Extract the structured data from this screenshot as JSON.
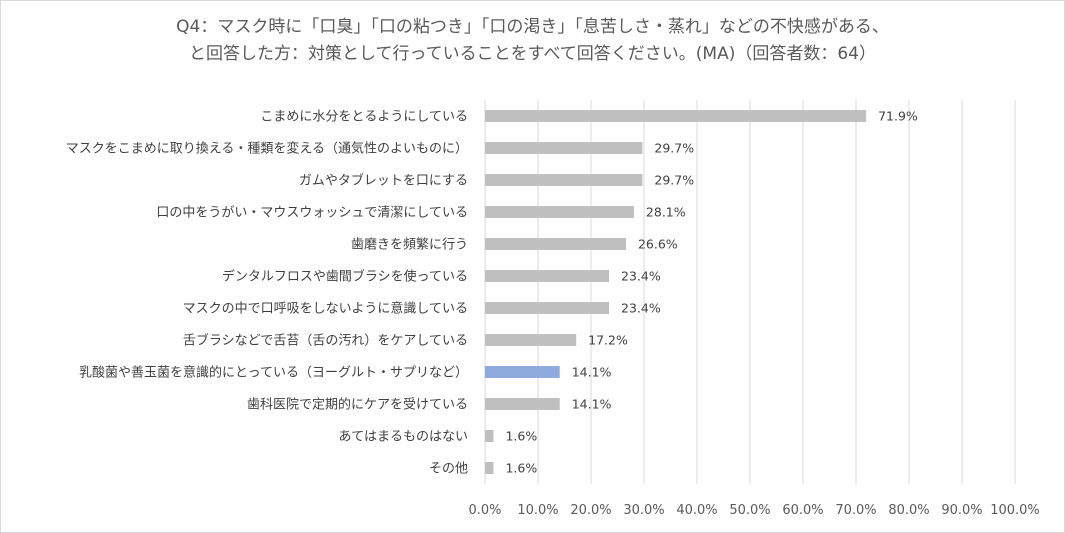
{
  "title_line1": "Q4：マスク時に「口臭」「口の粘つき」「口の渇き」「息苦しさ・蒸れ」などの不快感がある、",
  "title_line2": "と回答した方：対策として行っていることをすべて回答ください。(MA)（回答者数：64）",
  "chart_data": {
    "type": "bar",
    "orientation": "horizontal",
    "title": "Q4：マスク時に「口臭」「口の粘つき」「口の渇き」「息苦しさ・蒸れ」などの不快感がある、と回答した方：対策として行っていることをすべて回答ください。(MA)（回答者数：64）",
    "categories": [
      "こまめに水分をとるようにしている",
      "マスクをこまめに取り換える・種類を変える（通気性のよいものに）",
      "ガムやタブレットを口にする",
      "口の中をうがい・マウスウォッシュで清潔にしている",
      "歯磨きを頻繁に行う",
      "デンタルフロスや歯間ブラシを使っている",
      "マスクの中で口呼吸をしないように意識している",
      "舌ブラシなどで舌苔（舌の汚れ）をケアしている",
      "乳酸菌や善玉菌を意識的にとっている（ヨーグルト・サプリなど）",
      "歯科医院で定期的にケアを受けている",
      "あてはまるものはない",
      "その他"
    ],
    "values": [
      71.9,
      29.7,
      29.7,
      28.1,
      26.6,
      23.4,
      23.4,
      17.2,
      14.1,
      14.1,
      1.6,
      1.6
    ],
    "value_labels": [
      "71.9%",
      "29.7%",
      "29.7%",
      "28.1%",
      "26.6%",
      "23.4%",
      "23.4%",
      "17.2%",
      "14.1%",
      "14.1%",
      "1.6%",
      "1.6%"
    ],
    "highlight_index": 8,
    "bar_color": "#bfbfbf",
    "highlight_color": "#8faadc",
    "xlim": [
      0,
      100
    ],
    "x_ticks": [
      "0.0%",
      "10.0%",
      "20.0%",
      "30.0%",
      "40.0%",
      "50.0%",
      "60.0%",
      "70.0%",
      "80.0%",
      "90.0%",
      "100.0%"
    ],
    "grid": true,
    "legend": "none"
  }
}
